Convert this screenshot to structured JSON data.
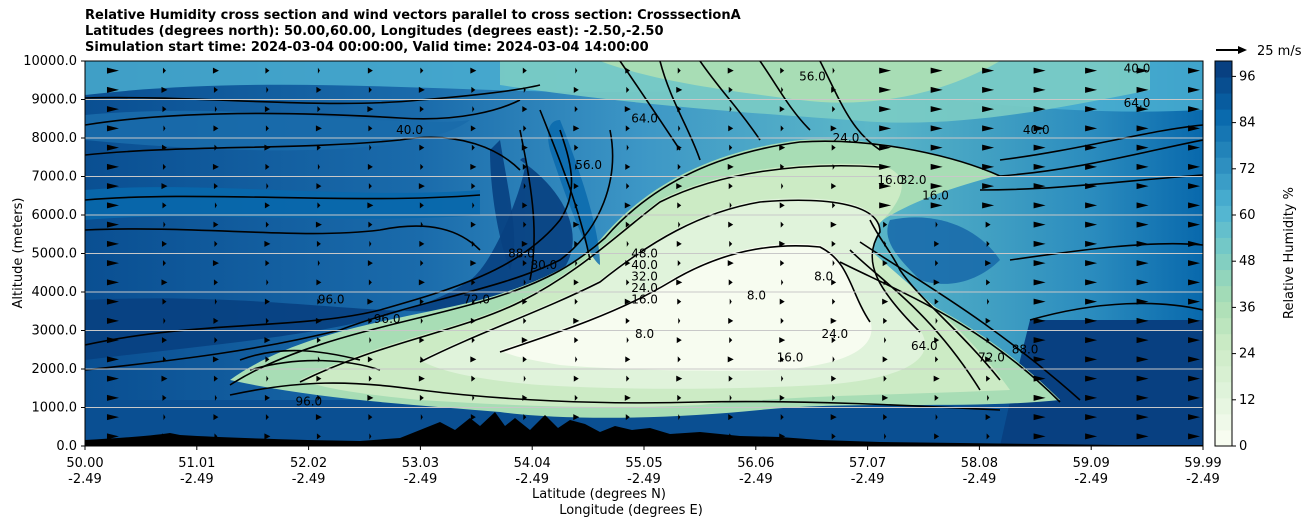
{
  "title": {
    "line1": "Relative Humidity cross section and wind vectors parallel to cross section: CrosssectionA",
    "line2": "Latitudes (degrees north): 50.00,60.00, Longitudes (degrees east): -2.50,-2.50",
    "line3": "Simulation start time: 2024-03-04 00:00:00, Valid time: 2024-03-04 14:00:00"
  },
  "chart_data": {
    "type": "filled-contour cross section with wind vectors",
    "xlabel": "Latitude (degrees N)",
    "xlabel2": "Longitude (degrees E)",
    "ylabel": "Altitude (meters)",
    "ylim": [
      0,
      10000
    ],
    "yticks": [
      "0.0",
      "1000.0",
      "2000.0",
      "3000.0",
      "4000.0",
      "5000.0",
      "6000.0",
      "7000.0",
      "8000.0",
      "9000.0",
      "10000.0"
    ],
    "xticks_lat": [
      "50.00",
      "51.01",
      "52.02",
      "53.03",
      "54.04",
      "55.05",
      "56.06",
      "57.07",
      "58.08",
      "59.09",
      "59.99"
    ],
    "xticks_lon": [
      "-2.49",
      "-2.49",
      "-2.49",
      "-2.49",
      "-2.49",
      "-2.49",
      "-2.49",
      "-2.49",
      "-2.49",
      "-2.49",
      "-2.49"
    ],
    "colorbar": {
      "label": "Relative Humidity %",
      "ticks": [
        "0",
        "12",
        "24",
        "36",
        "48",
        "60",
        "72",
        "84",
        "96"
      ],
      "range": [
        0,
        100
      ],
      "colors": [
        "#f7fcf0",
        "#e0f3db",
        "#ccebc5",
        "#a8ddb5",
        "#7bccc4",
        "#4eb3d3",
        "#2b8cbe",
        "#0868ac",
        "#084081"
      ]
    },
    "wind_key": "25 m/s",
    "contour_labels": [
      {
        "text": "96.0",
        "lat": 52.7,
        "alt": 3200
      },
      {
        "text": "96.0",
        "lat": 52.0,
        "alt": 1050
      },
      {
        "text": "96.0",
        "lat": 52.2,
        "alt": 3700
      },
      {
        "text": "88.0",
        "lat": 53.9,
        "alt": 4900
      },
      {
        "text": "80.0",
        "lat": 54.1,
        "alt": 4600
      },
      {
        "text": "72.0",
        "lat": 53.5,
        "alt": 3700
      },
      {
        "text": "64.0",
        "lat": 55.0,
        "alt": 8400
      },
      {
        "text": "56.0",
        "lat": 54.5,
        "alt": 7200
      },
      {
        "text": "48.0",
        "lat": 55.0,
        "alt": 4900
      },
      {
        "text": "40.0",
        "lat": 55.0,
        "alt": 4600
      },
      {
        "text": "32.0",
        "lat": 55.0,
        "alt": 4300
      },
      {
        "text": "24.0",
        "lat": 55.0,
        "alt": 4000
      },
      {
        "text": "16.0",
        "lat": 55.0,
        "alt": 3700
      },
      {
        "text": "8.0",
        "lat": 55.0,
        "alt": 2800
      },
      {
        "text": "8.0",
        "lat": 56.6,
        "alt": 4300
      },
      {
        "text": "8.0",
        "lat": 56.0,
        "alt": 3800
      },
      {
        "text": "16.0",
        "lat": 56.3,
        "alt": 2200
      },
      {
        "text": "24.0",
        "lat": 56.7,
        "alt": 2800
      },
      {
        "text": "24.0",
        "lat": 56.8,
        "alt": 7900
      },
      {
        "text": "32.0",
        "lat": 57.4,
        "alt": 6800
      },
      {
        "text": "16.0",
        "lat": 57.6,
        "alt": 6400
      },
      {
        "text": "16.0",
        "lat": 57.2,
        "alt": 6800
      },
      {
        "text": "64.0",
        "lat": 57.5,
        "alt": 2500
      },
      {
        "text": "72.0",
        "lat": 58.1,
        "alt": 2200
      },
      {
        "text": "88.0",
        "lat": 58.4,
        "alt": 2400
      },
      {
        "text": "56.0",
        "lat": 56.5,
        "alt": 9500
      },
      {
        "text": "40.0",
        "lat": 59.4,
        "alt": 9700
      },
      {
        "text": "64.0",
        "lat": 59.4,
        "alt": 8800
      },
      {
        "text": "40.0",
        "lat": 58.5,
        "alt": 8100
      },
      {
        "text": "40.0",
        "lat": 52.9,
        "alt": 8100
      }
    ]
  }
}
